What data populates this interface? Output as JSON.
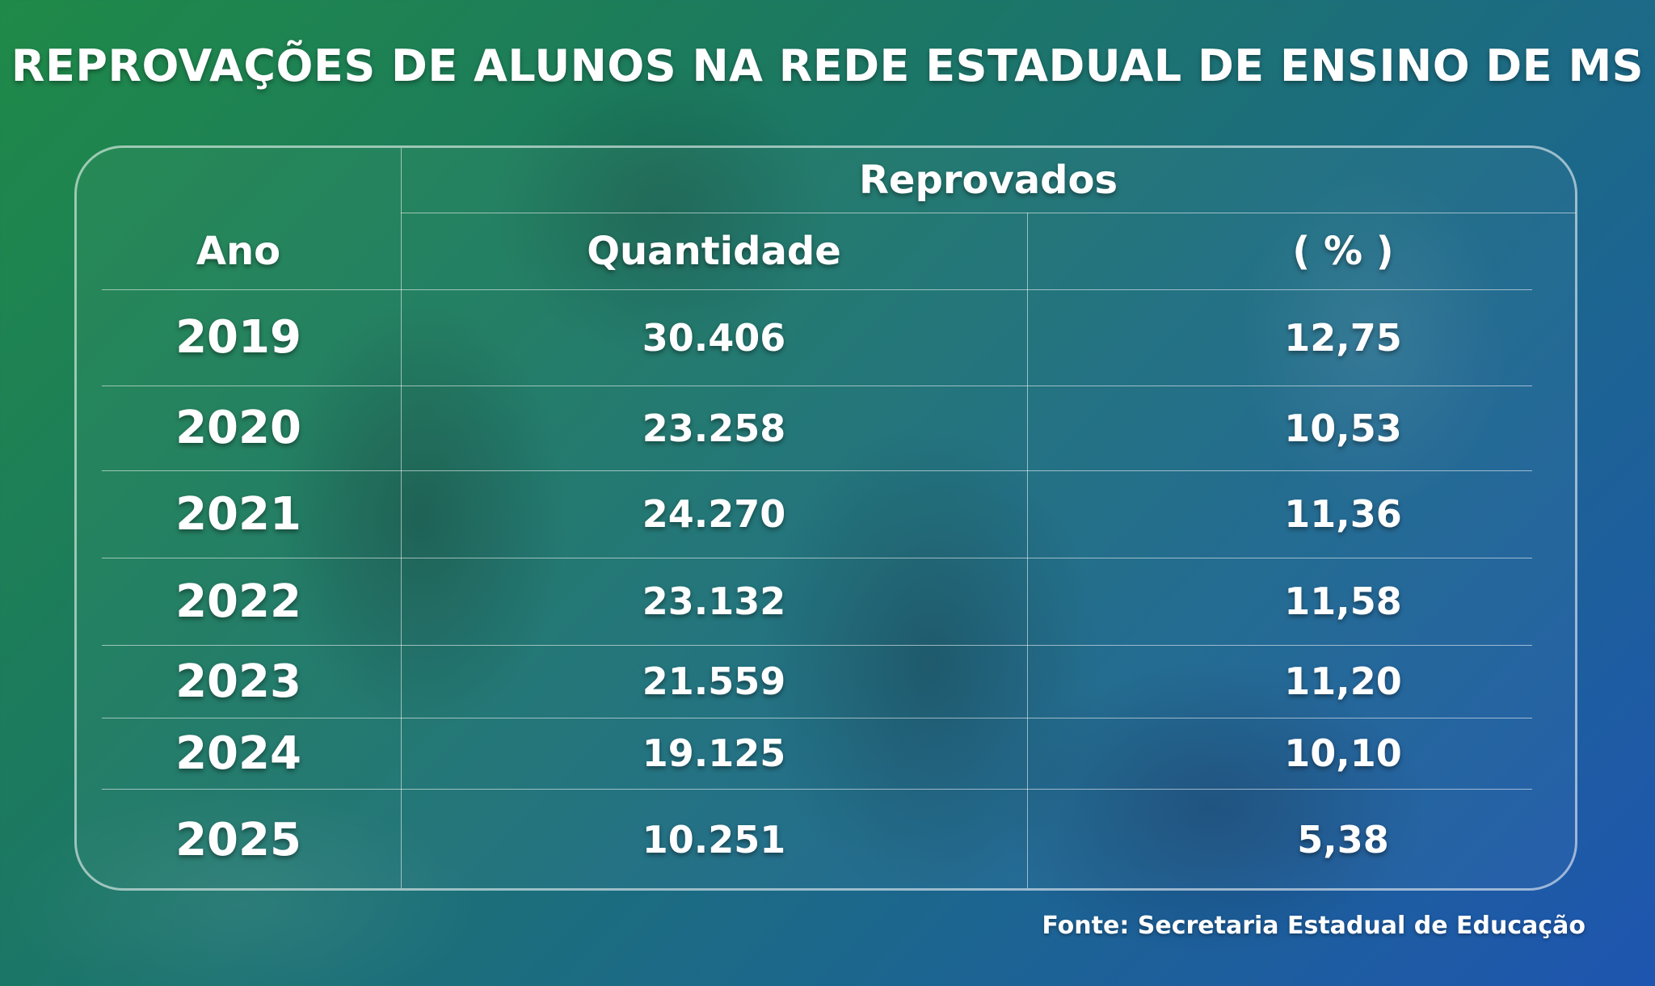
{
  "title": "REPROVAÇÕES DE ALUNOS NA REDE ESTADUAL DE ENSINO DE MS",
  "table": {
    "group_header": "Reprovados",
    "columns": {
      "year": "Ano",
      "quantity": "Quantidade",
      "percent": "( % )"
    },
    "rows": [
      {
        "year": "2019",
        "quantity": "30.406",
        "percent": "12,75"
      },
      {
        "year": "2020",
        "quantity": "23.258",
        "percent": "10,53"
      },
      {
        "year": "2021",
        "quantity": "24.270",
        "percent": "11,36"
      },
      {
        "year": "2022",
        "quantity": "23.132",
        "percent": "11,58"
      },
      {
        "year": "2023",
        "quantity": "21.559",
        "percent": "11,20"
      },
      {
        "year": "2024",
        "quantity": "19.125",
        "percent": "10,10"
      },
      {
        "year": "2025",
        "quantity": "10.251",
        "percent": "5,38"
      }
    ]
  },
  "source": "Fonte: Secretaria Estadual de Educação",
  "colors": {
    "gradient_start": "#1f8a48",
    "gradient_end": "#1e55b0",
    "text": "#ffffff"
  }
}
